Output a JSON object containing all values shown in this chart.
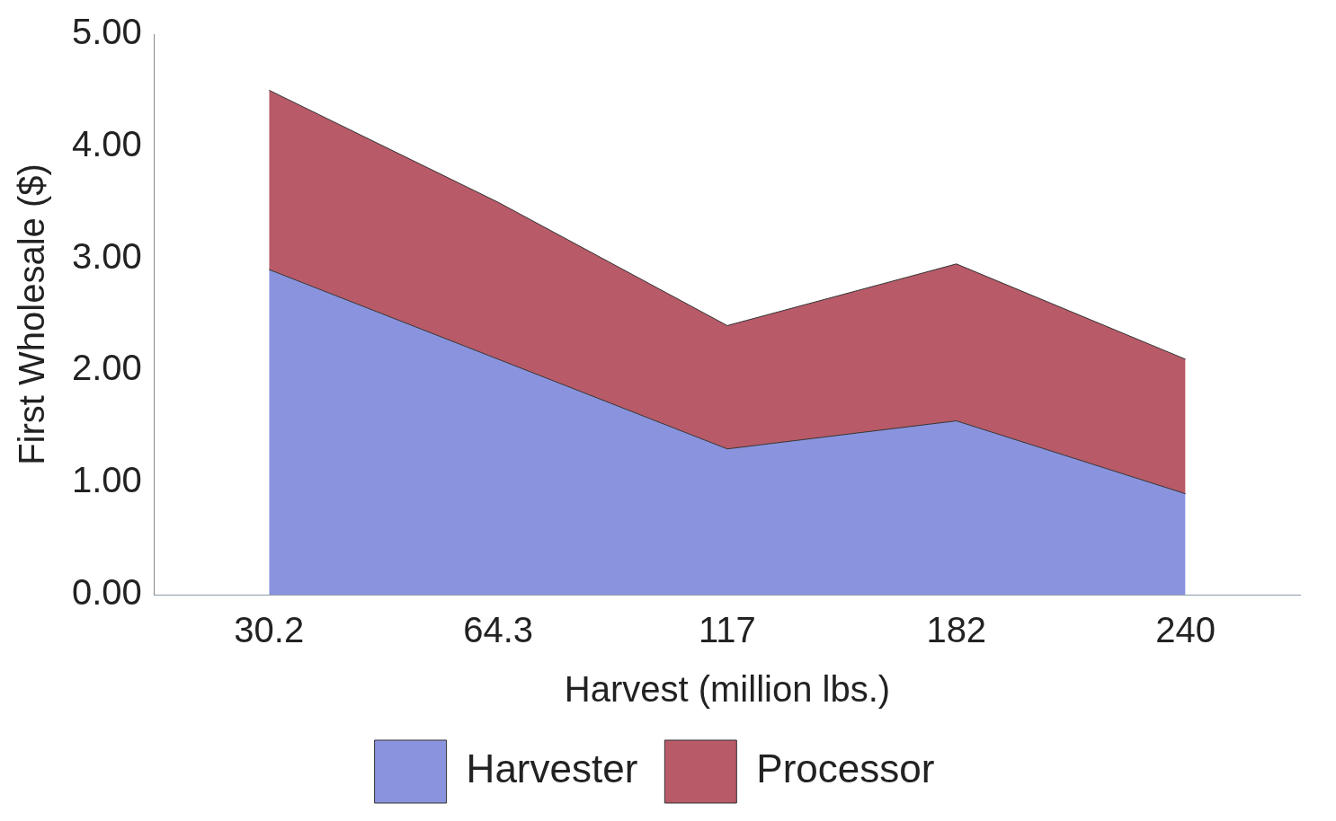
{
  "chart_data": {
    "type": "area",
    "stacked": true,
    "xlabel": "Harvest (million lbs.)",
    "ylabel": "First Wholesale ($)",
    "categories": [
      "30.2",
      "64.3",
      "117",
      "182",
      "240"
    ],
    "series": [
      {
        "name": "Harvester",
        "color": "#8a94de",
        "values": [
          2.9,
          2.1,
          1.3,
          1.55,
          0.9
        ]
      },
      {
        "name": "Processor",
        "color": "#b85a68",
        "values": [
          1.6,
          1.4,
          1.1,
          1.4,
          1.2
        ]
      }
    ],
    "ylim": [
      0,
      5
    ],
    "yticks": [
      {
        "value": 0,
        "label": "0.00"
      },
      {
        "value": 1,
        "label": "1.00"
      },
      {
        "value": 2,
        "label": "2.00"
      },
      {
        "value": 3,
        "label": "3.00"
      },
      {
        "value": 4,
        "label": "4.00"
      },
      {
        "value": 5,
        "label": "5.00"
      }
    ],
    "grid": false,
    "legend": "bottom"
  }
}
